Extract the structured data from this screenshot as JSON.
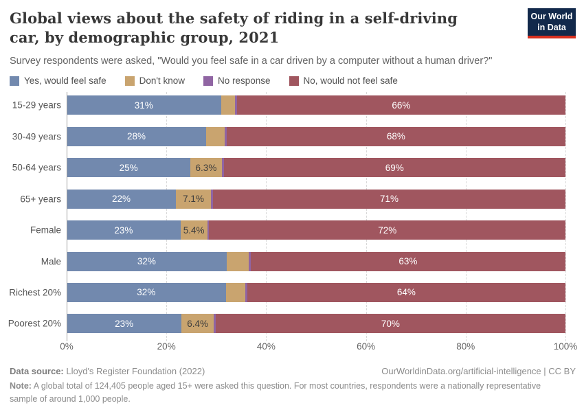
{
  "header": {
    "title": "Global views about the safety of riding in a self-driving car, by demographic group, 2021",
    "subtitle": "Survey respondents were asked, \"Would you feel safe in a car driven by a computer without a human driver?\"",
    "logo_line1": "Our World",
    "logo_line2": "in Data"
  },
  "colors": {
    "yes": "#7289ae",
    "dont_know": "#c9a46f",
    "no_response": "#9065a3",
    "no": "#a0565f",
    "logo_navy": "#12294b",
    "logo_red": "#d7301f"
  },
  "legend": [
    {
      "label": "Yes, would feel safe",
      "color_key": "yes"
    },
    {
      "label": "Don't know",
      "color_key": "dont_know"
    },
    {
      "label": "No response",
      "color_key": "no_response"
    },
    {
      "label": "No, would not feel safe",
      "color_key": "no"
    }
  ],
  "chart_data": {
    "type": "bar",
    "orientation": "horizontal",
    "stacked": true,
    "title": "Global views about the safety of riding in a self-driving car, by demographic group, 2021",
    "categories": [
      "15-29 years",
      "30-49 years",
      "50-64 years",
      "65+ years",
      "Female",
      "Male",
      "Richest 20%",
      "Poorest 20%"
    ],
    "series": [
      {
        "name": "Yes, would feel safe",
        "key": "yes",
        "values": [
          31,
          28,
          25,
          22,
          23,
          32,
          32,
          23
        ],
        "labels": [
          "31%",
          "28%",
          "25%",
          "22%",
          "23%",
          "32%",
          "32%",
          "23%"
        ],
        "label_color": "#ffffff"
      },
      {
        "name": "Don't know",
        "key": "dont_know",
        "values": [
          2.8,
          3.7,
          6.3,
          7.1,
          5.4,
          4.4,
          3.9,
          6.4
        ],
        "labels": [
          "",
          "",
          "6.3%",
          "7.1%",
          "5.4%",
          "",
          "",
          "6.4%"
        ],
        "label_color": "#3d3d3d"
      },
      {
        "name": "No response",
        "key": "no_response",
        "values": [
          0.4,
          0.4,
          0.4,
          0.4,
          0.4,
          0.4,
          0.4,
          0.4
        ],
        "labels": [
          "",
          "",
          "",
          "",
          "",
          "",
          "",
          ""
        ],
        "label_color": "#ffffff"
      },
      {
        "name": "No, would not feel safe",
        "key": "no",
        "values": [
          66,
          68,
          69,
          71,
          72,
          63,
          64,
          70
        ],
        "labels": [
          "66%",
          "68%",
          "69%",
          "71%",
          "72%",
          "63%",
          "64%",
          "70%"
        ],
        "label_color": "#ffffff"
      }
    ],
    "xlim": [
      0,
      100
    ],
    "x_ticks": [
      "0%",
      "20%",
      "40%",
      "60%",
      "80%",
      "100%"
    ],
    "x_tick_positions": [
      0,
      20,
      40,
      60,
      80,
      100
    ],
    "grid": "vertical-dashed",
    "legend_position": "top"
  },
  "footer": {
    "datasource_label": "Data source:",
    "datasource": " Lloyd's Register Foundation (2022)",
    "link": "OurWorldinData.org/artificial-intelligence | CC BY",
    "note_label": "Note:",
    "note": " A global total of 124,405 people aged 15+ were asked this question. For most countries, respondents were a nationally representative sample of around 1,000 people."
  }
}
